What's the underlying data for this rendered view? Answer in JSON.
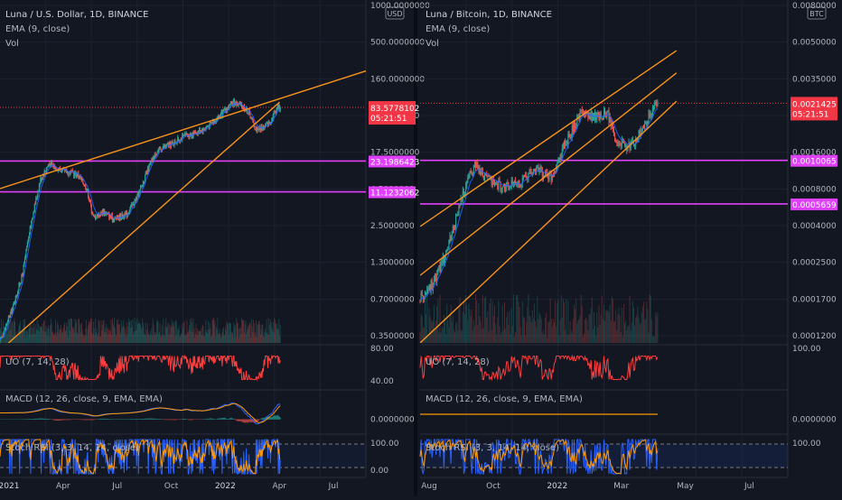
{
  "theme": {
    "background": "#131722",
    "grid": "#1e2230",
    "separator": "#2a2e39",
    "axis_text": "#b2b5be",
    "candle_up": "#26a69a",
    "candle_down": "#ef5350",
    "trendline": "#f7931a",
    "level": "#e040fb",
    "ema": "#2962ff",
    "uo_line": "#ff3d3d",
    "macd_line": "#2962ff",
    "signal_line": "#ff9800",
    "stoch_k": "#2962ff",
    "stoch_d": "#ff9800",
    "price_tag": "#f23645"
  },
  "panels": [
    {
      "id": "luna-usd",
      "title": "Luna / U.S. Dollar, 1D, BINANCE",
      "ema_label": "EMA (9, close)",
      "vol_label": "Vol",
      "currency_badge": "USD",
      "price_tag": "83.5778102",
      "countdown": "05:21:51",
      "levels": [
        "23.1986423",
        "11.1232062"
      ],
      "price_ticks": [
        "1000.0000000",
        "500.0000000",
        "160.0000000",
        "35.0000000",
        "17.5000000",
        "4.5000000",
        "2.5000000",
        "1.3000000",
        "0.7000000",
        "0.3500000"
      ],
      "uo_label": "UO (7, 14, 28)",
      "uo_ticks": [
        "80.00",
        "40.00"
      ],
      "macd_label": "MACD (12, 26, close, 9, EMA, EMA)",
      "macd_ticks": [
        "0.0000000"
      ],
      "stoch_label": "Stoch RSI (3, 3, 14, 14, close)",
      "stoch_ticks": [
        "100.00",
        "0.00"
      ],
      "time_ticks": [
        "2021",
        "Apr",
        "Jul",
        "Oct",
        "2022",
        "Apr",
        "Jul"
      ]
    },
    {
      "id": "luna-btc",
      "title": "Luna / Bitcoin, 1D, BINANCE",
      "ema_label": "EMA (9, close)",
      "vol_label": "Vol",
      "currency_badge": "BTC",
      "price_tag": "0.0021425",
      "countdown": "05:21:51",
      "levels": [
        "0.0010065",
        "0.0005659"
      ],
      "price_ticks": [
        "0.0080000",
        "0.0050000",
        "0.0035000",
        "0.0025000",
        "0.0016000",
        "0.0008000",
        "0.0004000",
        "0.0002500",
        "0.0001700",
        "0.0001200"
      ],
      "uo_label": "UO (7, 14, 28)",
      "uo_ticks": [
        "100.00"
      ],
      "macd_label": "MACD (12, 26, close, 9, EMA, EMA)",
      "macd_ticks": [
        "0.0000000"
      ],
      "stoch_label": "Stoch RSI (3, 3, 14, 14, close)",
      "stoch_ticks": [
        "100.00"
      ],
      "time_ticks": [
        "Aug",
        "Oct",
        "2022",
        "Mar",
        "May",
        "Jul"
      ]
    }
  ],
  "chart_data": [
    {
      "type": "candlestick",
      "title": "Luna / U.S. Dollar, 1D, BINANCE",
      "y_scale": "log",
      "ylim": [
        0.3,
        1000
      ],
      "x_range": [
        "2021-01-01",
        "2022-07-15"
      ],
      "anchors": [
        [
          "2021-01-01",
          0.3
        ],
        [
          "2021-01-20",
          0.65
        ],
        [
          "2021-02-05",
          1.5
        ],
        [
          "2021-02-20",
          6
        ],
        [
          "2021-03-05",
          15
        ],
        [
          "2021-03-18",
          22
        ],
        [
          "2021-04-10",
          18
        ],
        [
          "2021-05-01",
          17
        ],
        [
          "2021-05-15",
          12
        ],
        [
          "2021-05-25",
          6
        ],
        [
          "2021-06-10",
          7
        ],
        [
          "2021-06-25",
          5.8
        ],
        [
          "2021-07-15",
          6.5
        ],
        [
          "2021-08-01",
          10
        ],
        [
          "2021-08-15",
          18
        ],
        [
          "2021-08-28",
          28
        ],
        [
          "2021-09-07",
          32
        ],
        [
          "2021-09-22",
          35
        ],
        [
          "2021-10-10",
          42
        ],
        [
          "2021-10-25",
          45
        ],
        [
          "2021-11-10",
          50
        ],
        [
          "2021-11-25",
          60
        ],
        [
          "2021-12-10",
          75
        ],
        [
          "2021-12-26",
          95
        ],
        [
          "2022-01-10",
          85
        ],
        [
          "2022-01-20",
          70
        ],
        [
          "2022-01-28",
          50
        ],
        [
          "2022-02-10",
          52
        ],
        [
          "2022-02-20",
          60
        ],
        [
          "2022-03-02",
          85
        ],
        [
          "2022-03-07",
          83.5778102
        ]
      ],
      "lines": [
        {
          "kind": "trendline",
          "from": [
            "2021-01-01",
            0.25
          ],
          "to": [
            "2022-03-05",
            95
          ]
        },
        {
          "kind": "trendline",
          "from": [
            "2021-01-01",
            12
          ],
          "to": [
            "2022-07-15",
            200
          ]
        }
      ],
      "levels": [
        23.1986423,
        11.1232062
      ],
      "last_price": 83.5778102
    },
    {
      "type": "candlestick",
      "title": "Luna / Bitcoin, 1D, BINANCE",
      "y_scale": "log",
      "ylim": [
        9e-05,
        0.008
      ],
      "x_range": [
        "2021-07-10",
        "2022-07-15"
      ],
      "anchors": [
        [
          "2021-07-10",
          0.00016
        ],
        [
          "2021-07-25",
          0.0002
        ],
        [
          "2021-08-08",
          0.00032
        ],
        [
          "2021-08-20",
          0.00055
        ],
        [
          "2021-08-28",
          0.0008
        ],
        [
          "2021-09-05",
          0.00095
        ],
        [
          "2021-09-20",
          0.00075
        ],
        [
          "2021-10-05",
          0.0007
        ],
        [
          "2021-10-20",
          0.00075
        ],
        [
          "2021-11-05",
          0.0009
        ],
        [
          "2021-11-20",
          0.0008
        ],
        [
          "2021-12-05",
          0.0013
        ],
        [
          "2021-12-20",
          0.0019
        ],
        [
          "2022-01-05",
          0.0018
        ],
        [
          "2022-01-15",
          0.0019
        ],
        [
          "2022-01-25",
          0.0013
        ],
        [
          "2022-02-08",
          0.0012
        ],
        [
          "2022-02-20",
          0.0015
        ],
        [
          "2022-03-02",
          0.002
        ],
        [
          "2022-03-07",
          0.0021425
        ]
      ],
      "lines": [
        {
          "kind": "channel",
          "from": [
            "2021-07-10",
            0.00042
          ],
          "to": [
            "2022-03-25",
            0.0043
          ]
        },
        {
          "kind": "channel",
          "from": [
            "2021-07-10",
            0.00022
          ],
          "to": [
            "2022-03-25",
            0.0032
          ]
        },
        {
          "kind": "channel",
          "from": [
            "2021-07-10",
            9e-05
          ],
          "to": [
            "2022-03-25",
            0.0022
          ]
        }
      ],
      "levels": [
        0.0010065,
        0.0005659
      ],
      "last_price": 0.0021425
    }
  ]
}
